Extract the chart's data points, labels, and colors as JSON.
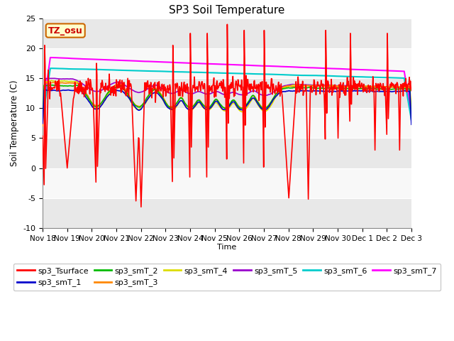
{
  "title": "SP3 Soil Temperature",
  "xlabel": "Time",
  "ylabel": "Soil Temperature (C)",
  "ylim": [
    -10,
    25
  ],
  "xlim": [
    0,
    15
  ],
  "tz_label": "TZ_osu",
  "background_color": "#ffffff",
  "plot_bg_alternating": [
    "#e8e8e8",
    "#f8f8f8"
  ],
  "grid_color": "#ffffff",
  "x_tick_labels": [
    "Nov 18",
    "Nov 19",
    "Nov 20",
    "Nov 21",
    "Nov 22",
    "Nov 23",
    "Nov 24",
    "Nov 25",
    "Nov 26",
    "Nov 27",
    "Nov 28",
    "Nov 29",
    "Nov 30",
    "Dec 1",
    "Dec 2",
    "Dec 3"
  ],
  "series_colors": {
    "sp3_Tsurface": "#ff0000",
    "sp3_smT_1": "#0000cc",
    "sp3_smT_2": "#00bb00",
    "sp3_smT_3": "#ff8800",
    "sp3_smT_4": "#dddd00",
    "sp3_smT_5": "#9900cc",
    "sp3_smT_6": "#00cccc",
    "sp3_smT_7": "#ff00ff"
  },
  "legend_entries": [
    "sp3_Tsurface",
    "sp3_smT_1",
    "sp3_smT_2",
    "sp3_smT_3",
    "sp3_smT_4",
    "sp3_smT_5",
    "sp3_smT_6",
    "sp3_smT_7"
  ],
  "figsize": [
    6.4,
    4.8
  ],
  "dpi": 100
}
